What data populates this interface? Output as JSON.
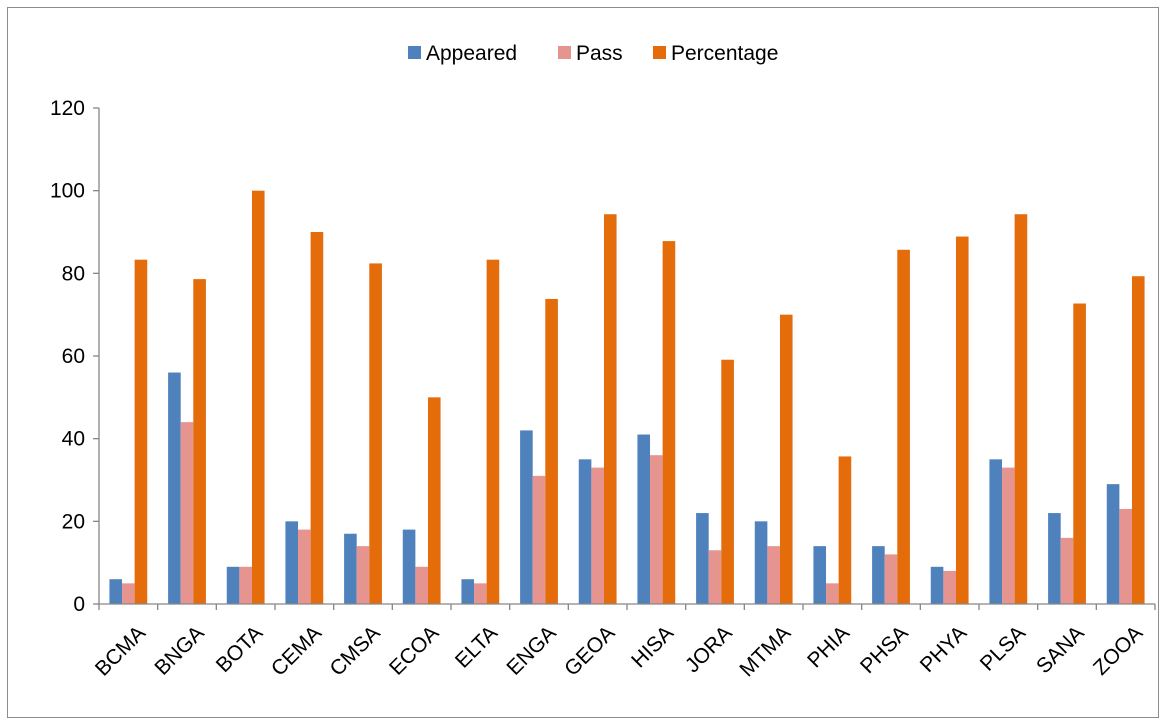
{
  "chart_data": {
    "type": "bar",
    "title": "",
    "xlabel": "",
    "ylabel": "",
    "ylim": [
      0,
      120
    ],
    "yticks": [
      0,
      20,
      40,
      60,
      80,
      100,
      120
    ],
    "grid": false,
    "legend_position": "top-center",
    "categories": [
      "BCMA",
      "BNGA",
      "BOTA",
      "CEMA",
      "CMSA",
      "ECOA",
      "ELTA",
      "ENGA",
      "GEOA",
      "HISA",
      "JORA",
      "MTMA",
      "PHIA",
      "PHSA",
      "PHYA",
      "PLSA",
      "SANA",
      "ZOOA"
    ],
    "series": [
      {
        "name": "Appeared",
        "color": "#4f81bd",
        "values": [
          6,
          56,
          9,
          20,
          17,
          18,
          6,
          42,
          35,
          41,
          22,
          20,
          14,
          14,
          9,
          35,
          22,
          29
        ]
      },
      {
        "name": "Pass",
        "color": "#e6948f",
        "values": [
          5,
          44,
          9,
          18,
          14,
          9,
          5,
          31,
          33,
          36,
          13,
          14,
          5,
          12,
          8,
          33,
          16,
          23
        ]
      },
      {
        "name": "Percentage",
        "color": "#e46c0a",
        "values": [
          83.3,
          78.6,
          100,
          90,
          82.4,
          50,
          83.3,
          73.8,
          94.3,
          87.8,
          59.1,
          70,
          35.7,
          85.7,
          88.9,
          94.3,
          72.7,
          79.3
        ]
      }
    ]
  }
}
